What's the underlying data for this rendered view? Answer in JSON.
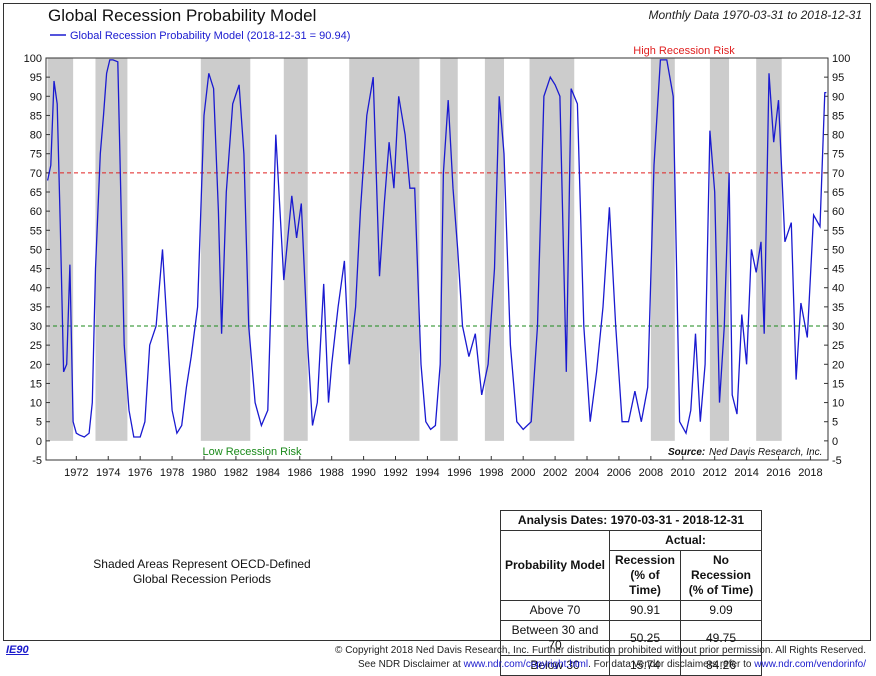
{
  "header": {
    "title": "Global Recession Probability Model",
    "subtitle": "Monthly Data 1970-03-31 to 2018-12-31"
  },
  "chart_data": {
    "type": "line",
    "title": "Global Recession Probability Model",
    "legend": "Global Recession Probability Model (2018-12-31 = 90.94)",
    "legend_position": "top-left",
    "ylim": [
      -5,
      100
    ],
    "yticks": [
      -5,
      0,
      5,
      10,
      15,
      20,
      25,
      30,
      35,
      40,
      45,
      50,
      55,
      60,
      65,
      70,
      75,
      80,
      85,
      90,
      95,
      100
    ],
    "xlim": [
      1970.1,
      2019.1
    ],
    "xticks": [
      1972,
      1974,
      1976,
      1978,
      1980,
      1982,
      1984,
      1986,
      1988,
      1990,
      1992,
      1994,
      1996,
      1998,
      2000,
      2002,
      2004,
      2006,
      2008,
      2010,
      2012,
      2014,
      2016,
      2018
    ],
    "series_color": "#1a1ad0",
    "reference_lines": [
      {
        "y": 70,
        "label": "High Recession Risk",
        "color": "#e02020"
      },
      {
        "y": 30,
        "label": "Low Recession Risk",
        "color": "#1a8a1a"
      }
    ],
    "recession_shading": [
      [
        1970.2,
        1971.8
      ],
      [
        1973.2,
        1975.2
      ],
      [
        1979.8,
        1982.9
      ],
      [
        1985.0,
        1986.5
      ],
      [
        1989.1,
        1993.5
      ],
      [
        1994.8,
        1995.9
      ],
      [
        1997.6,
        1998.8
      ],
      [
        2000.4,
        2003.2
      ],
      [
        2008.0,
        2009.5
      ],
      [
        2011.7,
        2012.9
      ],
      [
        2014.6,
        2016.2
      ]
    ],
    "source": "Ned Davis Research, Inc.",
    "series": [
      {
        "x": [
          1970.2,
          1970.4,
          1970.6,
          1970.8,
          1971.0,
          1971.2,
          1971.4,
          1971.6,
          1971.8,
          1972.0,
          1972.2,
          1972.5,
          1972.8,
          1973.0,
          1973.2,
          1973.5,
          1973.7,
          1973.9,
          1974.1,
          1974.3,
          1974.6,
          1975.0,
          1975.3,
          1975.6,
          1976.0,
          1976.3,
          1976.6,
          1977.0,
          1977.4,
          1977.8,
          1978.0,
          1978.3,
          1978.6,
          1978.9,
          1979.2,
          1979.6,
          1980.0,
          1980.3,
          1980.6,
          1980.9,
          1981.1,
          1981.4,
          1981.8,
          1982.2,
          1982.5,
          1982.8,
          1983.2,
          1983.6,
          1984.0,
          1984.5,
          1985.0,
          1985.5,
          1985.8,
          1986.1,
          1986.5,
          1986.8,
          1987.1,
          1987.5,
          1987.8,
          1988.0,
          1988.4,
          1988.8,
          1989.1,
          1989.5,
          1989.8,
          1990.2,
          1990.6,
          1991.0,
          1991.3,
          1991.6,
          1991.9,
          1992.2,
          1992.6,
          1992.9,
          1993.2,
          1993.6,
          1993.9,
          1994.2,
          1994.5,
          1994.8,
          1995.0,
          1995.3,
          1995.6,
          1995.9,
          1996.2,
          1996.6,
          1997.0,
          1997.4,
          1997.8,
          1998.2,
          1998.5,
          1998.8,
          1999.2,
          1999.6,
          2000.0,
          2000.5,
          2000.9,
          2001.3,
          2001.7,
          2002.0,
          2002.3,
          2002.7,
          2003.0,
          2003.4,
          2003.8,
          2004.2,
          2004.6,
          2005.0,
          2005.4,
          2005.8,
          2006.2,
          2006.6,
          2007.0,
          2007.4,
          2007.8,
          2008.2,
          2008.6,
          2009.0,
          2009.4,
          2009.8,
          2010.2,
          2010.5,
          2010.8,
          2011.1,
          2011.4,
          2011.7,
          2012.0,
          2012.3,
          2012.6,
          2012.9,
          2013.1,
          2013.4,
          2013.7,
          2014.0,
          2014.3,
          2014.6,
          2014.9,
          2015.1,
          2015.4,
          2015.7,
          2016.0,
          2016.4,
          2016.8,
          2017.1,
          2017.4,
          2017.8,
          2018.2,
          2018.6,
          2018.9,
          2019.0
        ],
        "values": [
          68,
          72,
          94,
          88,
          55,
          18,
          20,
          46,
          5,
          2,
          1.5,
          1,
          2,
          10,
          45,
          75,
          85,
          96,
          99.5,
          99.5,
          99,
          25,
          8,
          1,
          1,
          5,
          25,
          30,
          50,
          22,
          8,
          2,
          4,
          14,
          22,
          35,
          85,
          96,
          92,
          60,
          28,
          65,
          88,
          93,
          75,
          30,
          10,
          4,
          8,
          80,
          42,
          64,
          53,
          62,
          25,
          4,
          10,
          41,
          10,
          20,
          35,
          47,
          20,
          35,
          60,
          85,
          95,
          43,
          62,
          78,
          66,
          90,
          80,
          66,
          66,
          20,
          5,
          3,
          4,
          20,
          70,
          89,
          66,
          50,
          30,
          22,
          28,
          12,
          20,
          45,
          90,
          75,
          25,
          5,
          3,
          5,
          30,
          90,
          95,
          93,
          90,
          18,
          92,
          88,
          30,
          5,
          18,
          35,
          61,
          30,
          5,
          5,
          13,
          5,
          14,
          72,
          99.5,
          99.5,
          90,
          5,
          2,
          8,
          28,
          5,
          20,
          81,
          65,
          10,
          30,
          70,
          12,
          7,
          33,
          20,
          50,
          44,
          52,
          28,
          96,
          78,
          89,
          52,
          57,
          16,
          36,
          27,
          59,
          56,
          90.94,
          91
        ]
      }
    ]
  },
  "note": {
    "line1": "Shaded Areas Represent OECD-Defined",
    "line2": "Global Recession Periods"
  },
  "table": {
    "analysis_dates": "Analysis Dates: 1970-03-31 - 2018-12-31",
    "actual": "Actual:",
    "model_header": "Probability Model",
    "col1_header": "Recession (% of Time)",
    "col2_header": "No Recession (% of Time)",
    "rows": [
      {
        "label": "Above 70",
        "recession": "90.91",
        "no_recession": "9.09"
      },
      {
        "label": "Between 30 and 70",
        "recession": "50.25",
        "no_recession": "49.75"
      },
      {
        "label": "Below 30",
        "recession": "15.74",
        "no_recession": "84.26"
      }
    ]
  },
  "footer": {
    "id": "IE90",
    "copyright": "© Copyright 2018 Ned Davis Research, Inc. Further distribution prohibited without prior permission. All Rights Reserved.",
    "disclaimer_prefix": "See NDR Disclaimer at",
    "disclaimer_link1": "www.ndr.com/copyright.html",
    "disclaimer_mid": ". For data vendor disclaimers refer to",
    "disclaimer_link2": "www.ndr.com/vendorinfo/"
  }
}
